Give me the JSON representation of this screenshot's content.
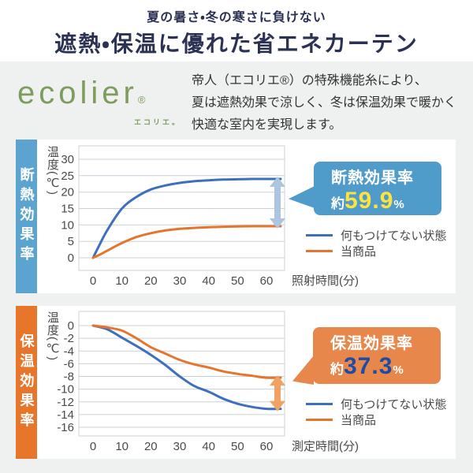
{
  "header": {
    "subtitle": "夏の暑さ・冬の寒さに負けない",
    "title": "遮熱・保温に優れた省エネカーテン"
  },
  "brand": {
    "logo": "ecolier",
    "reg_mark": "®",
    "logo_ruby": "エコリエ。",
    "description": "帝人（エコリエ®）の特殊機能糸により、\n夏は遮熱効果で涼しく、冬は保温効果で暖かく\n快適な室内を実現します。"
  },
  "chart_data": [
    {
      "type": "line",
      "panel_label": "断熱効果率",
      "ylabel": "温度(℃)",
      "xlabel": "照射時間(分)",
      "x": [
        0,
        2,
        5,
        10,
        15,
        20,
        25,
        30,
        35,
        40,
        45,
        50,
        55,
        60
      ],
      "series": [
        {
          "name": "何もつけてない状態",
          "color": "#3e6fbe",
          "values": [
            0,
            3.5,
            8.5,
            15,
            18.5,
            20.8,
            22,
            22.8,
            23.3,
            23.6,
            23.8,
            23.9,
            24,
            24
          ]
        },
        {
          "name": "当商品",
          "color": "#e5752d",
          "values": [
            0,
            0.8,
            2.2,
            4.5,
            6.3,
            7.5,
            8.3,
            8.8,
            9.1,
            9.3,
            9.45,
            9.55,
            9.6,
            9.6
          ]
        }
      ],
      "xticks": [
        0,
        10,
        20,
        30,
        40,
        50,
        60
      ],
      "yticks": [
        0,
        5,
        10,
        15,
        20,
        25,
        30
      ],
      "ylim": [
        0,
        30
      ],
      "grid": true,
      "legend_position": "right",
      "accent": "#5ba4d0",
      "grid_color": "#c7d1da",
      "frame_color": "#d2d2d2",
      "arrow_color": "#abc6de",
      "callout": {
        "title": "断熱効果率",
        "approx": "約",
        "value": "59.9",
        "unit": "%",
        "bg": "#4f9bca",
        "value_color": "#ffe23e"
      }
    },
    {
      "type": "line",
      "panel_label": "保温効果率",
      "ylabel": "温度(℃)",
      "xlabel": "測定時間(分)",
      "x": [
        0,
        5,
        10,
        15,
        20,
        25,
        30,
        35,
        40,
        45,
        50,
        55,
        60
      ],
      "series": [
        {
          "name": "何もつけてない状態",
          "color": "#3e6fbe",
          "values": [
            0,
            -0.6,
            -1.9,
            -3.2,
            -4.6,
            -6.2,
            -8,
            -9.5,
            -10.4,
            -11.5,
            -12.3,
            -12.8,
            -13.1
          ]
        },
        {
          "name": "当商品",
          "color": "#e5752d",
          "values": [
            0,
            -0.3,
            -0.8,
            -2,
            -3.4,
            -4.4,
            -5.4,
            -6.1,
            -6.6,
            -7.2,
            -7.6,
            -7.9,
            -8.2
          ]
        }
      ],
      "xticks": [
        0,
        10,
        20,
        30,
        40,
        50,
        60
      ],
      "yticks": [
        0,
        -2,
        -4,
        -6,
        -8,
        -10,
        -12,
        -14,
        -16
      ],
      "ylim": [
        -16,
        0
      ],
      "grid": true,
      "legend_position": "right",
      "accent": "#e7752a",
      "grid_color": "#c7d1da",
      "frame_color": "#d2d2d2",
      "arrow_color": "#f1a263",
      "callout": {
        "title": "保温効果率",
        "approx": "約",
        "value": "37.3",
        "unit": "%",
        "bg": "#e8874b",
        "value_color": "#1d4ba5"
      }
    }
  ],
  "colors": {
    "page_bg": "#eff1f0",
    "panel_bg": "#ffffff",
    "title_navy": "#2b3153",
    "logo_green": "#7d9c5e",
    "body_text": "#333333",
    "tick_text": "#4a4a4a",
    "legend_text": "#4a4a4a"
  }
}
